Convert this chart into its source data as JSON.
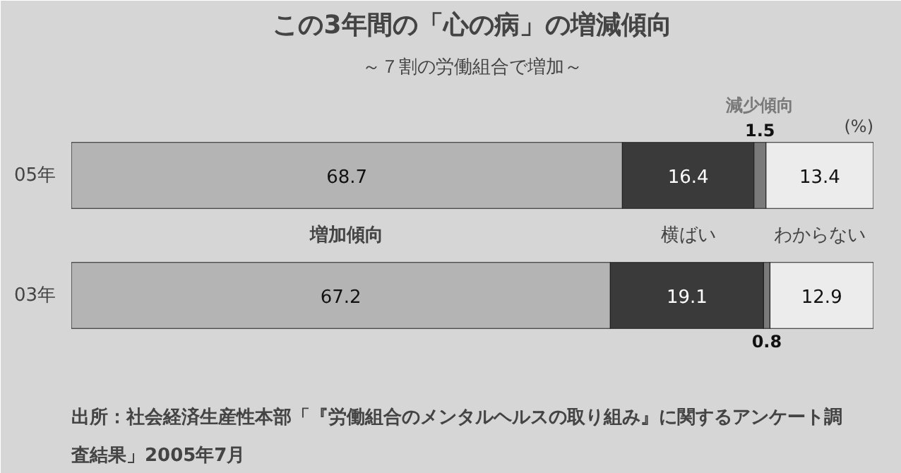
{
  "chart_data": {
    "type": "bar",
    "orientation": "horizontal",
    "stacked": true,
    "title": "この3年間の「心の病」の増減傾向",
    "subtitle": "～７割の労働組合で増加～",
    "categories": [
      "05年",
      "03年"
    ],
    "series": [
      {
        "name": "増加傾向",
        "color": "#b4b4b4",
        "values": [
          68.7,
          67.2
        ]
      },
      {
        "name": "横ばい",
        "color": "#3a3a3a",
        "values": [
          16.4,
          19.1
        ]
      },
      {
        "name": "減少傾向",
        "color": "#7a7a7a",
        "values": [
          1.5,
          0.8
        ]
      },
      {
        "name": "わからない",
        "color": "#ececec",
        "values": [
          13.4,
          12.9
        ]
      }
    ],
    "data_labels": true,
    "tick_labels": "y",
    "grid": false,
    "annotations": [
      "(%)",
      "出所：社会経済生産性本部「『労働組合のメンタルヘルスの取り組み』に関するアンケート調査結果」2005年7月"
    ]
  }
}
